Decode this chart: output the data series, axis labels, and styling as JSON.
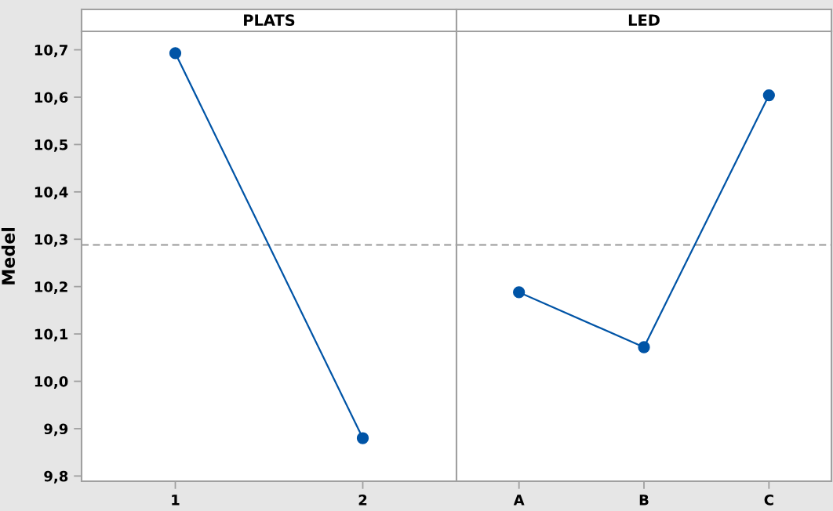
{
  "chart_data": [
    {
      "type": "line",
      "title": "PLATS",
      "ylabel": "Medel",
      "categories": [
        "1",
        "2"
      ],
      "values": [
        10.693,
        9.88
      ],
      "color": "#0054a6",
      "marker": "circle",
      "line_style": "solid",
      "ylim": [
        9.789,
        10.739
      ],
      "yticks": [
        {
          "value": 9.8,
          "label": "9,8"
        },
        {
          "value": 9.9,
          "label": "9,9"
        },
        {
          "value": 10.0,
          "label": "10,0"
        },
        {
          "value": 10.1,
          "label": "10,1"
        },
        {
          "value": 10.2,
          "label": "10,2"
        },
        {
          "value": 10.3,
          "label": "10,3"
        },
        {
          "value": 10.4,
          "label": "10,4"
        },
        {
          "value": 10.5,
          "label": "10,5"
        },
        {
          "value": 10.6,
          "label": "10,6"
        },
        {
          "value": 10.7,
          "label": "10,7"
        }
      ],
      "ref_lines": [
        {
          "axis": "y",
          "value": 10.288,
          "color": "#999999",
          "line_style": "dashed"
        }
      ]
    },
    {
      "type": "line",
      "title": "LED",
      "categories": [
        "A",
        "B",
        "C"
      ],
      "values": [
        10.188,
        10.072,
        10.604
      ],
      "color": "#0054a6",
      "marker": "circle",
      "line_style": "solid",
      "ylim": [
        9.789,
        10.739
      ],
      "tick_labels": "x",
      "ref_lines": [
        {
          "axis": "y",
          "value": 10.288,
          "color": "#999999",
          "line_style": "dashed"
        }
      ]
    }
  ]
}
